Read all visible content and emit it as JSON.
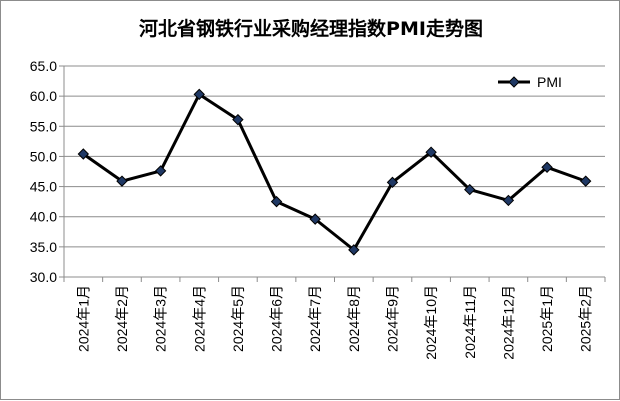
{
  "chart_data": {
    "type": "line",
    "title": "河北省钢铁行业采购经理指数PMI走势图",
    "categories": [
      "2024年1月",
      "2024年2月",
      "2024年3月",
      "2024年4月",
      "2024年5月",
      "2024年6月",
      "2024年7月",
      "2024年8月",
      "2024年9月",
      "2024年10月",
      "2024年11月",
      "2024年12月",
      "2025年1月",
      "2025年2月"
    ],
    "series": [
      {
        "name": "PMI",
        "values": [
          50.4,
          45.9,
          47.6,
          60.3,
          56.1,
          42.5,
          39.6,
          34.5,
          45.7,
          50.7,
          44.5,
          42.7,
          48.2,
          45.9
        ]
      }
    ],
    "y_ticks": [
      "65.0",
      "60.0",
      "55.0",
      "50.0",
      "45.0",
      "40.0",
      "35.0",
      "30.0"
    ],
    "ylim": [
      30,
      65
    ],
    "xlabel": "",
    "ylabel": "",
    "grid": "horizontal",
    "legend_position": "top-right",
    "marker": "diamond",
    "line_color": "#000000",
    "marker_color": "#1f3864",
    "grid_color": "#8c8c8c"
  }
}
